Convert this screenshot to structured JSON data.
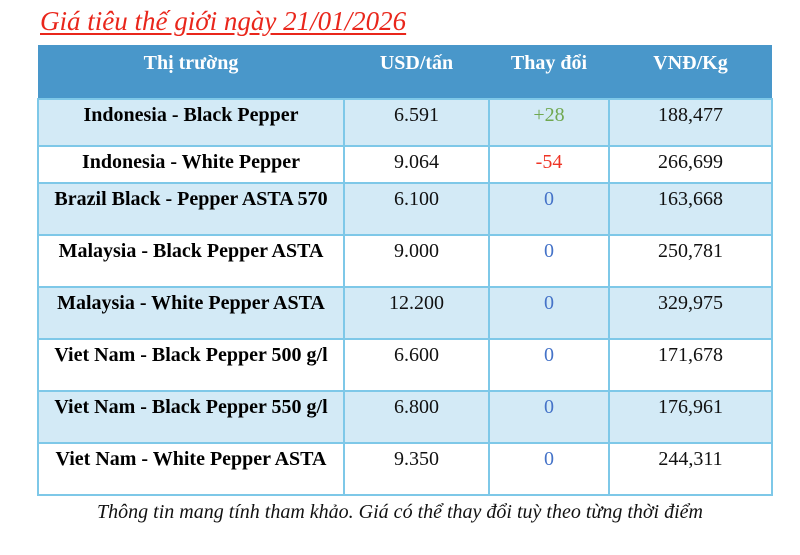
{
  "title": "Giá tiêu thế giới ngày 21/01/2026",
  "footer": "Thông tin mang tính tham khảo. Giá có thể thay đổi tuỳ theo từng thời điểm",
  "colors": {
    "title_color": "#E9261B",
    "header_bg": "#4997CA",
    "header_text": "#FFFFFF",
    "row_bg": "#FFFFFF",
    "row_alt_bg": "#D3EAF6",
    "border": "#7EC8E8",
    "change_up": "#70A851",
    "change_down": "#EF3425",
    "change_zero": "#4573C8"
  },
  "table": {
    "columns": [
      "Thị trường",
      "USD/tấn",
      "Thay đổi",
      "VNĐ/Kg"
    ],
    "rows": [
      {
        "market": "Indonesia - Black Pepper",
        "usd": "6.591",
        "change": "+28",
        "change_dir": "up",
        "vnd": "188,477"
      },
      {
        "market": "Indonesia - White Pepper",
        "usd": "9.064",
        "change": "-54",
        "change_dir": "down",
        "vnd": "266,699"
      },
      {
        "market": "Brazil Black - Pepper ASTA 570",
        "usd": "6.100",
        "change": "0",
        "change_dir": "zero",
        "vnd": "163,668"
      },
      {
        "market": "Malaysia - Black Pepper ASTA",
        "usd": "9.000",
        "change": "0",
        "change_dir": "zero",
        "vnd": "250,781"
      },
      {
        "market": "Malaysia - White Pepper ASTA",
        "usd": "12.200",
        "change": "0",
        "change_dir": "zero",
        "vnd": "329,975"
      },
      {
        "market": "Viet Nam - Black Pepper 500 g/l",
        "usd": "6.600",
        "change": "0",
        "change_dir": "zero",
        "vnd": "171,678"
      },
      {
        "market": "Viet Nam - Black Pepper 550 g/l",
        "usd": "6.800",
        "change": "0",
        "change_dir": "zero",
        "vnd": "176,961"
      },
      {
        "market": "Viet Nam - White Pepper ASTA",
        "usd": "9.350",
        "change": "0",
        "change_dir": "zero",
        "vnd": "244,311"
      }
    ]
  }
}
